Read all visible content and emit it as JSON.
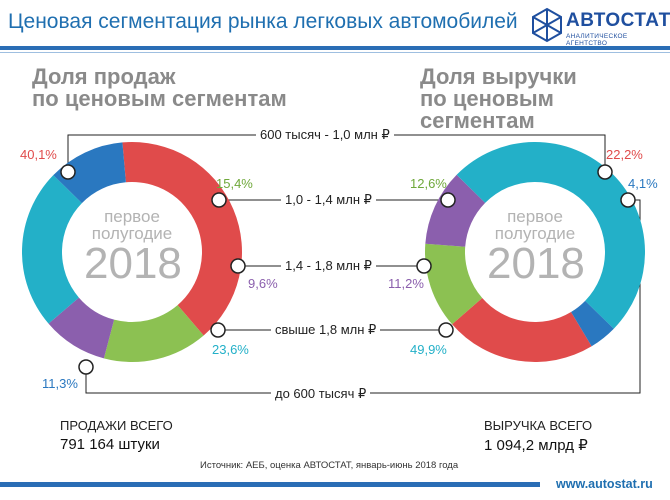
{
  "header": {
    "title": "Ценовая сегментация рынка легковых автомобилей",
    "logo_name": "АВТОСТАТ",
    "logo_sub": "АНАЛИТИЧЕСКОЕ АГЕНТСТВО"
  },
  "left_panel": {
    "title_line1": "Доля продаж",
    "title_line2": "по ценовым сегментам",
    "center_line1": "первое",
    "center_line2": "полугодие",
    "center_year": "2018",
    "total_label": "ПРОДАЖИ ВСЕГО",
    "total_value": "791 164 штуки"
  },
  "right_panel": {
    "title_line1": "Доля выручки",
    "title_line2": "по ценовым сегментам",
    "center_line1": "первое",
    "center_line2": "полугодие",
    "center_year": "2018",
    "total_label": "ВЫРУЧКА ВСЕГО",
    "total_value": "1 094,2 млрд ₽"
  },
  "source": "Источник: АЕБ, оценка АВТОСТАТ, январь-июнь 2018 года",
  "footer_url": "www.autostat.ru",
  "colors": {
    "seg_600k_1m": "#e04b4b",
    "seg_1_1_4": "#8cc152",
    "seg_1_4_1_8": "#8b5fad",
    "seg_over_1_8": "#23b0c8",
    "seg_under_600k": "#2a78c0"
  },
  "chart_data": [
    {
      "type": "pie",
      "title": "Доля продаж по ценовым сегментам",
      "categories": [
        "600 тысяч - 1,0 млн ₽",
        "1,0 - 1,4 млн ₽",
        "1,4 - 1,8 млн ₽",
        "свыше 1,8 млн ₽",
        "до 600 тысяч ₽"
      ],
      "values": [
        40.1,
        15.4,
        9.6,
        23.6,
        11.3
      ],
      "value_labels": [
        "40,1%",
        "15,4%",
        "9,6%",
        "23,6%",
        "11,3%"
      ],
      "start_angle_deg": -95
    },
    {
      "type": "pie",
      "title": "Доля выручки по ценовым сегментам",
      "categories": [
        "600 тысяч - 1,0 млн ₽",
        "1,0 - 1,4 млн ₽",
        "1,4 - 1,8 млн ₽",
        "свыше 1,8 млн ₽",
        "до 600 тысяч ₽"
      ],
      "values": [
        22.2,
        12.6,
        11.2,
        49.9,
        4.1
      ],
      "value_labels": [
        "22,2%",
        "12,6%",
        "11,2%",
        "49,9%",
        "4,1%"
      ],
      "start_angle_deg": 59
    }
  ]
}
